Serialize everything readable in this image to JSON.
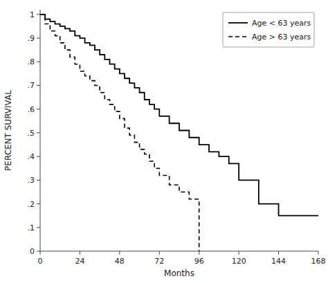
{
  "chart_data": {
    "type": "line",
    "xlabel": "Months",
    "ylabel": "PERCENT SURVIVAL",
    "xlim": [
      0,
      168
    ],
    "ylim": [
      0,
      1.02
    ],
    "xticks": [
      0,
      24,
      48,
      72,
      96,
      120,
      144,
      168
    ],
    "yticks": [
      0,
      {
        "value": 0.1,
        "label": ".1"
      },
      {
        "value": 0.2,
        "label": ".2"
      },
      {
        "value": 0.3,
        "label": ".3"
      },
      {
        "value": 0.4,
        "label": ".4"
      },
      {
        "value": 0.5,
        "label": ".5"
      },
      {
        "value": 0.6,
        "label": ".6"
      },
      {
        "value": 0.7,
        "label": ".7"
      },
      {
        "value": 0.8,
        "label": ".8"
      },
      {
        "value": 0.9,
        "label": ".9"
      },
      1
    ],
    "grid": false,
    "legend": "upper right",
    "series": [
      {
        "name": "Age < 63 years",
        "color": "#000000",
        "line_style": "solid",
        "x": [
          0,
          3,
          3,
          6,
          6,
          9,
          9,
          12,
          12,
          15,
          15,
          18,
          18,
          21,
          21,
          24,
          24,
          27,
          27,
          30,
          30,
          33,
          33,
          36,
          36,
          39,
          39,
          42,
          42,
          45,
          45,
          48,
          48,
          51,
          51,
          54,
          54,
          57,
          57,
          60,
          60,
          63,
          63,
          66,
          66,
          69,
          69,
          72,
          72,
          78,
          78,
          84,
          84,
          90,
          90,
          96,
          96,
          102,
          102,
          108,
          108,
          114,
          114,
          120,
          120,
          132,
          132,
          144,
          144,
          168
        ],
        "values": [
          1.0,
          1.0,
          0.98,
          0.98,
          0.97,
          0.97,
          0.96,
          0.96,
          0.95,
          0.95,
          0.94,
          0.94,
          0.93,
          0.93,
          0.91,
          0.91,
          0.9,
          0.9,
          0.88,
          0.88,
          0.87,
          0.87,
          0.85,
          0.85,
          0.83,
          0.83,
          0.81,
          0.81,
          0.79,
          0.79,
          0.77,
          0.77,
          0.75,
          0.75,
          0.73,
          0.73,
          0.71,
          0.71,
          0.69,
          0.69,
          0.67,
          0.67,
          0.64,
          0.64,
          0.62,
          0.62,
          0.6,
          0.6,
          0.57,
          0.57,
          0.54,
          0.54,
          0.51,
          0.51,
          0.48,
          0.48,
          0.45,
          0.45,
          0.42,
          0.42,
          0.4,
          0.4,
          0.37,
          0.37,
          0.3,
          0.3,
          0.2,
          0.2,
          0.15,
          0.15
        ]
      },
      {
        "name": "Age > 63 years",
        "color": "#000000",
        "line_style": "dashed",
        "x": [
          0,
          3,
          3,
          6,
          6,
          9,
          9,
          12,
          12,
          15,
          15,
          18,
          18,
          21,
          21,
          24,
          24,
          27,
          27,
          30,
          30,
          33,
          33,
          36,
          36,
          39,
          39,
          42,
          42,
          45,
          45,
          48,
          48,
          51,
          51,
          54,
          54,
          57,
          57,
          60,
          60,
          63,
          63,
          66,
          66,
          69,
          69,
          72,
          72,
          78,
          78,
          84,
          84,
          90,
          90,
          96,
          96
        ],
        "values": [
          1.0,
          1.0,
          0.96,
          0.96,
          0.93,
          0.93,
          0.91,
          0.91,
          0.88,
          0.88,
          0.85,
          0.85,
          0.82,
          0.82,
          0.79,
          0.79,
          0.76,
          0.76,
          0.74,
          0.74,
          0.72,
          0.72,
          0.7,
          0.7,
          0.67,
          0.67,
          0.64,
          0.64,
          0.62,
          0.62,
          0.59,
          0.59,
          0.56,
          0.56,
          0.52,
          0.52,
          0.49,
          0.49,
          0.46,
          0.46,
          0.43,
          0.43,
          0.41,
          0.41,
          0.38,
          0.38,
          0.35,
          0.35,
          0.32,
          0.32,
          0.28,
          0.28,
          0.25,
          0.25,
          0.22,
          0.22,
          0.0
        ]
      }
    ]
  }
}
